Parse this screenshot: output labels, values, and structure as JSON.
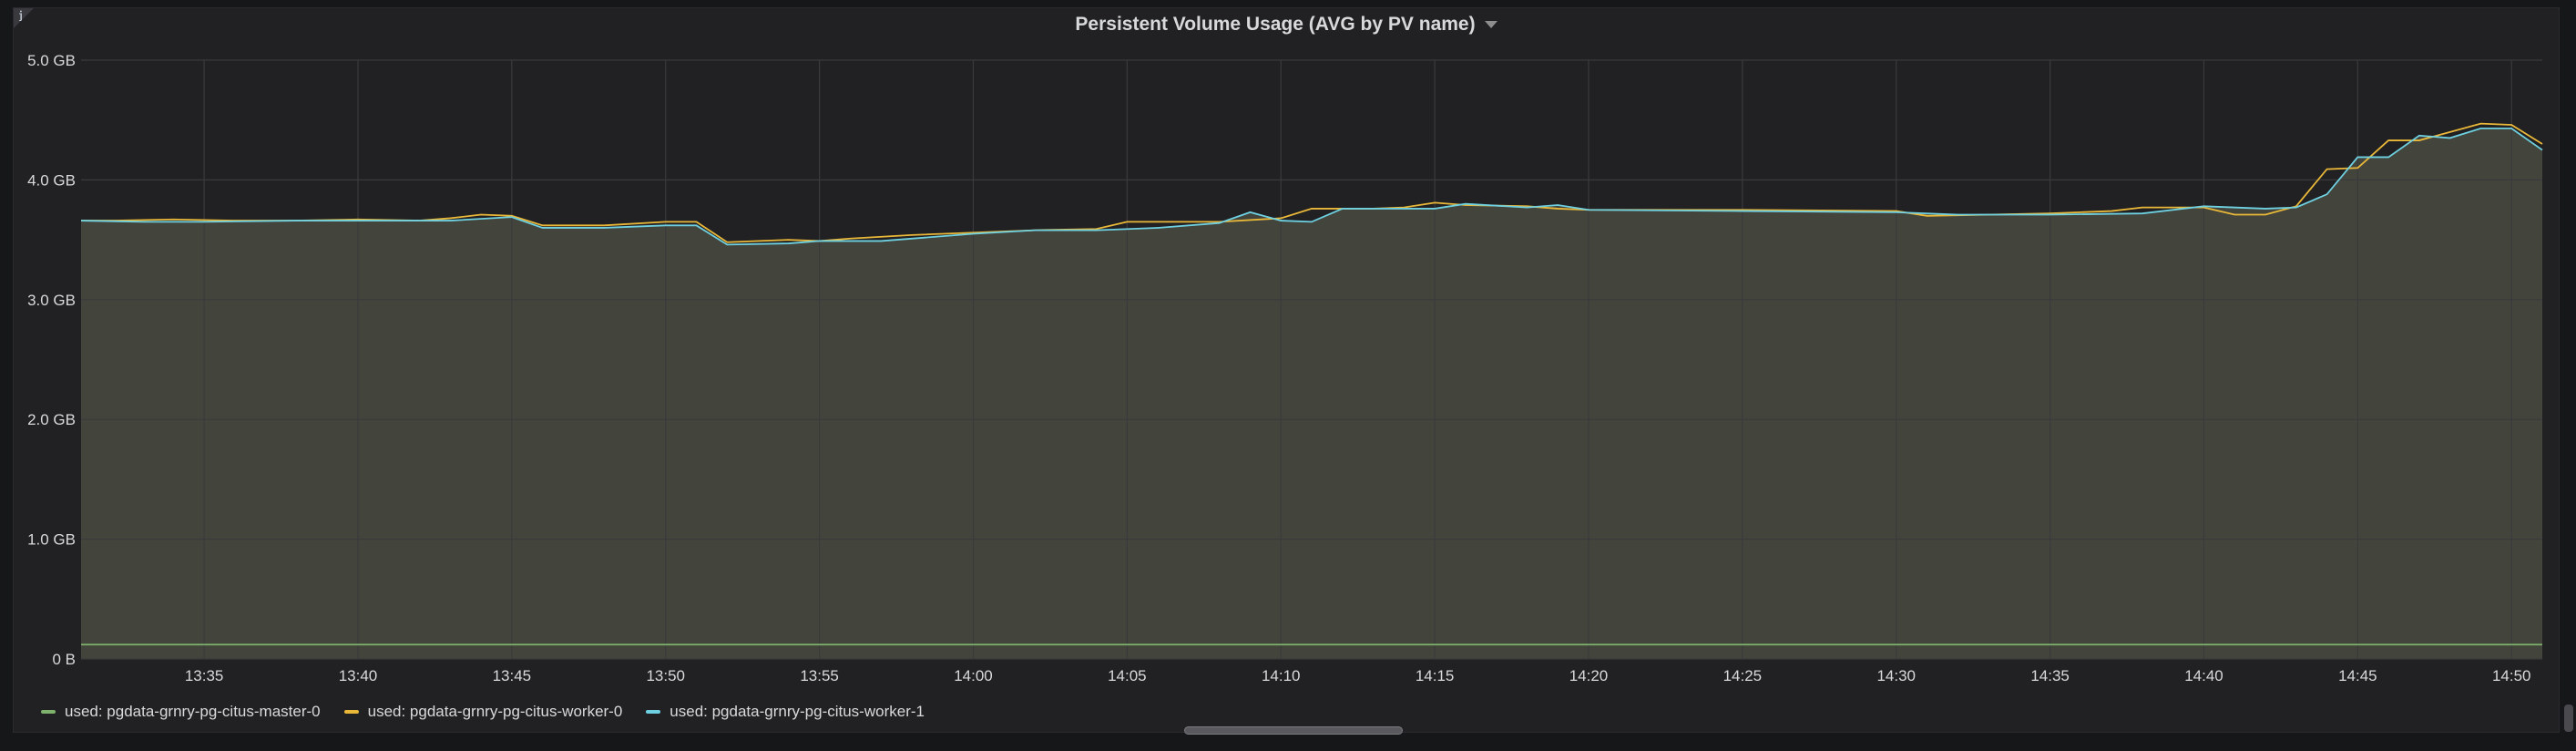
{
  "panel": {
    "title": "Persistent Volume Usage (AVG by PV name)",
    "info_glyph": "i"
  },
  "colors": {
    "background": "#161719",
    "panel": "#212124",
    "grid": "#3a3a3c",
    "fill": "#46483f",
    "master": "#7eb26d",
    "worker0": "#eab839",
    "worker1": "#6ed0e0",
    "text": "#d8d9da"
  },
  "chart_data": {
    "type": "line",
    "title": "Persistent Volume Usage (AVG by PV name)",
    "xlabel": "",
    "ylabel": "",
    "y_unit": "GB",
    "ylim": [
      0,
      5
    ],
    "yticks": [
      {
        "value": 0,
        "label": "0 B"
      },
      {
        "value": 1,
        "label": "1.0 GB"
      },
      {
        "value": 2,
        "label": "2.0 GB"
      },
      {
        "value": 3,
        "label": "3.0 GB"
      },
      {
        "value": 4,
        "label": "4.0 GB"
      },
      {
        "value": 5,
        "label": "5.0 GB"
      }
    ],
    "xlim": [
      "13:31",
      "14:51"
    ],
    "xticks": [
      "13:35",
      "13:40",
      "13:45",
      "13:50",
      "13:55",
      "14:00",
      "14:05",
      "14:10",
      "14:15",
      "14:20",
      "14:25",
      "14:30",
      "14:35",
      "14:40",
      "14:45",
      "14:50"
    ],
    "grid": true,
    "legend_position": "bottom",
    "series": [
      {
        "name": "used: pgdata-grnry-pg-citus-master-0",
        "color": "#7eb26d",
        "points": [
          [
            "13:31",
            0.12
          ],
          [
            "13:34",
            0.12
          ],
          [
            "13:38",
            0.12
          ],
          [
            "13:45",
            0.12
          ],
          [
            "13:55",
            0.12
          ],
          [
            "14:05",
            0.12
          ],
          [
            "14:15",
            0.12
          ],
          [
            "14:25",
            0.12
          ],
          [
            "14:35",
            0.12
          ],
          [
            "14:45",
            0.12
          ],
          [
            "14:51",
            0.12
          ]
        ]
      },
      {
        "name": "used: pgdata-grnry-pg-citus-worker-0",
        "color": "#eab839",
        "points": [
          [
            "13:31",
            3.66
          ],
          [
            "13:32",
            3.66
          ],
          [
            "13:34",
            3.67
          ],
          [
            "13:36",
            3.66
          ],
          [
            "13:38",
            3.66
          ],
          [
            "13:40",
            3.67
          ],
          [
            "13:42",
            3.66
          ],
          [
            "13:43",
            3.68
          ],
          [
            "13:44",
            3.71
          ],
          [
            "13:45",
            3.7
          ],
          [
            "13:46",
            3.62
          ],
          [
            "13:48",
            3.62
          ],
          [
            "13:50",
            3.65
          ],
          [
            "13:51",
            3.65
          ],
          [
            "13:52",
            3.48
          ],
          [
            "13:54",
            3.5
          ],
          [
            "13:55",
            3.49
          ],
          [
            "13:56",
            3.51
          ],
          [
            "13:58",
            3.54
          ],
          [
            "14:00",
            3.56
          ],
          [
            "14:02",
            3.58
          ],
          [
            "14:04",
            3.59
          ],
          [
            "14:05",
            3.65
          ],
          [
            "14:08",
            3.65
          ],
          [
            "14:10",
            3.68
          ],
          [
            "14:11",
            3.76
          ],
          [
            "14:13",
            3.76
          ],
          [
            "14:14",
            3.77
          ],
          [
            "14:15",
            3.81
          ],
          [
            "14:16",
            3.79
          ],
          [
            "14:18",
            3.78
          ],
          [
            "14:19",
            3.76
          ],
          [
            "14:20",
            3.75
          ],
          [
            "14:22",
            3.75
          ],
          [
            "14:25",
            3.75
          ],
          [
            "14:30",
            3.74
          ],
          [
            "14:31",
            3.7
          ],
          [
            "14:35",
            3.72
          ],
          [
            "14:37",
            3.74
          ],
          [
            "14:38",
            3.77
          ],
          [
            "14:39",
            3.77
          ],
          [
            "14:40",
            3.77
          ],
          [
            "14:41",
            3.71
          ],
          [
            "14:42",
            3.71
          ],
          [
            "14:43",
            3.78
          ],
          [
            "14:44",
            4.09
          ],
          [
            "14:45",
            4.1
          ],
          [
            "14:46",
            4.33
          ],
          [
            "14:47",
            4.33
          ],
          [
            "14:48",
            4.4
          ],
          [
            "14:49",
            4.47
          ],
          [
            "14:50",
            4.46
          ],
          [
            "14:51",
            4.3
          ]
        ]
      },
      {
        "name": "used: pgdata-grnry-pg-citus-worker-1",
        "color": "#6ed0e0",
        "points": [
          [
            "13:31",
            3.66
          ],
          [
            "13:33",
            3.65
          ],
          [
            "13:35",
            3.65
          ],
          [
            "13:38",
            3.66
          ],
          [
            "13:40",
            3.66
          ],
          [
            "13:43",
            3.66
          ],
          [
            "13:45",
            3.69
          ],
          [
            "13:46",
            3.6
          ],
          [
            "13:48",
            3.6
          ],
          [
            "13:50",
            3.62
          ],
          [
            "13:51",
            3.62
          ],
          [
            "13:52",
            3.46
          ],
          [
            "13:54",
            3.47
          ],
          [
            "13:55",
            3.49
          ],
          [
            "13:57",
            3.49
          ],
          [
            "14:00",
            3.55
          ],
          [
            "14:02",
            3.58
          ],
          [
            "14:04",
            3.58
          ],
          [
            "14:06",
            3.6
          ],
          [
            "14:08",
            3.64
          ],
          [
            "14:09",
            3.73
          ],
          [
            "14:10",
            3.66
          ],
          [
            "14:11",
            3.65
          ],
          [
            "14:12",
            3.76
          ],
          [
            "14:15",
            3.76
          ],
          [
            "14:16",
            3.8
          ],
          [
            "14:18",
            3.77
          ],
          [
            "14:19",
            3.79
          ],
          [
            "14:20",
            3.75
          ],
          [
            "14:25",
            3.74
          ],
          [
            "14:30",
            3.73
          ],
          [
            "14:32",
            3.71
          ],
          [
            "14:35",
            3.71
          ],
          [
            "14:38",
            3.72
          ],
          [
            "14:40",
            3.78
          ],
          [
            "14:42",
            3.76
          ],
          [
            "14:43",
            3.77
          ],
          [
            "14:44",
            3.88
          ],
          [
            "14:45",
            4.19
          ],
          [
            "14:46",
            4.19
          ],
          [
            "14:47",
            4.37
          ],
          [
            "14:48",
            4.35
          ],
          [
            "14:49",
            4.43
          ],
          [
            "14:50",
            4.43
          ],
          [
            "14:51",
            4.25
          ]
        ]
      }
    ]
  }
}
